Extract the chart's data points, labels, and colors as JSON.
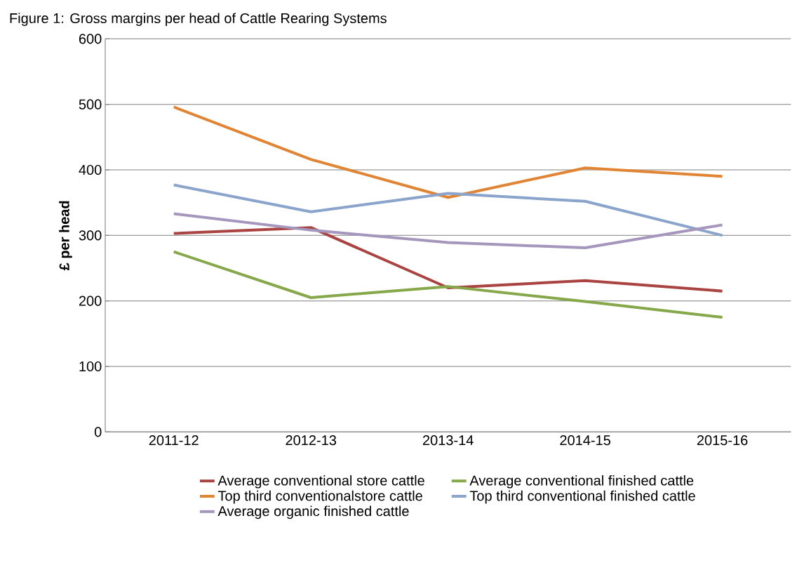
{
  "chart_data": {
    "type": "line",
    "title": "Figure 1: Gross margins per head of Cattle Rearing Systems",
    "ylabel": "£ per head",
    "categories": [
      "2011-12",
      "2012-13",
      "2013-14",
      "2014-15",
      "2015-16"
    ],
    "ylim": [
      0,
      600
    ],
    "yticks": [
      0,
      100,
      200,
      300,
      400,
      500,
      600
    ],
    "grid": "y",
    "legend": "bottom",
    "marker": "none",
    "series": [
      {
        "name": "Average conventional store cattle",
        "color": "#a94442",
        "values": [
          303,
          312,
          220,
          231,
          215
        ]
      },
      {
        "name": "Average conventional finished cattle",
        "color": "#86a84a",
        "values": [
          275,
          205,
          222,
          199,
          175
        ]
      },
      {
        "name": "Top third conventionalstore cattle",
        "color": "#e08535",
        "values": [
          496,
          416,
          358,
          403,
          390
        ]
      },
      {
        "name": "Top third conventional finished cattle",
        "color": "#8aa4cc",
        "values": [
          377,
          336,
          364,
          352,
          300
        ]
      },
      {
        "name": "Average organic finished cattle",
        "color": "#a596bd",
        "values": [
          333,
          308,
          289,
          281,
          316
        ]
      }
    ]
  }
}
